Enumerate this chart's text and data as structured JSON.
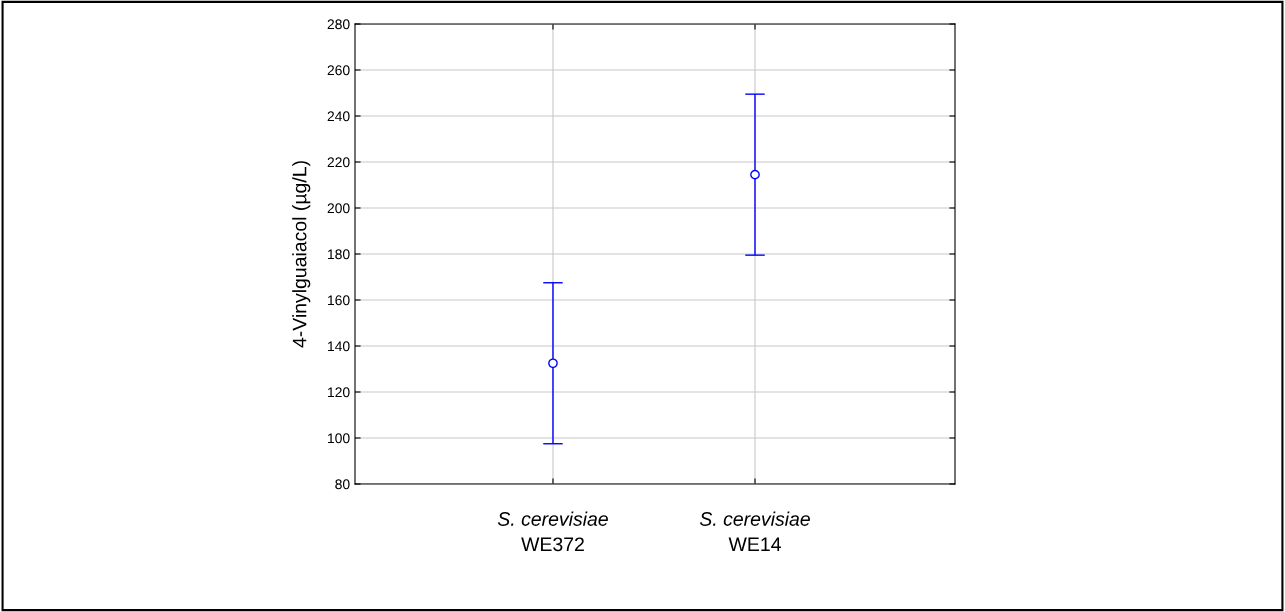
{
  "chart_data": {
    "type": "scatter",
    "ylabel": "4-Vinylguaiacol (µg/L)",
    "categories": [
      "S. cerevisiae\nWE372",
      "S. cerevisiae\nWE14"
    ],
    "series": [
      {
        "color": "#0000ff",
        "values": [
          132.5,
          214.5
        ],
        "errors": [
          35,
          35
        ]
      }
    ],
    "ylim": [
      80,
      280
    ],
    "yticks": [
      80,
      100,
      120,
      140,
      160,
      180,
      200,
      220,
      240,
      260,
      280
    ],
    "grid": true,
    "marker": "circle"
  }
}
